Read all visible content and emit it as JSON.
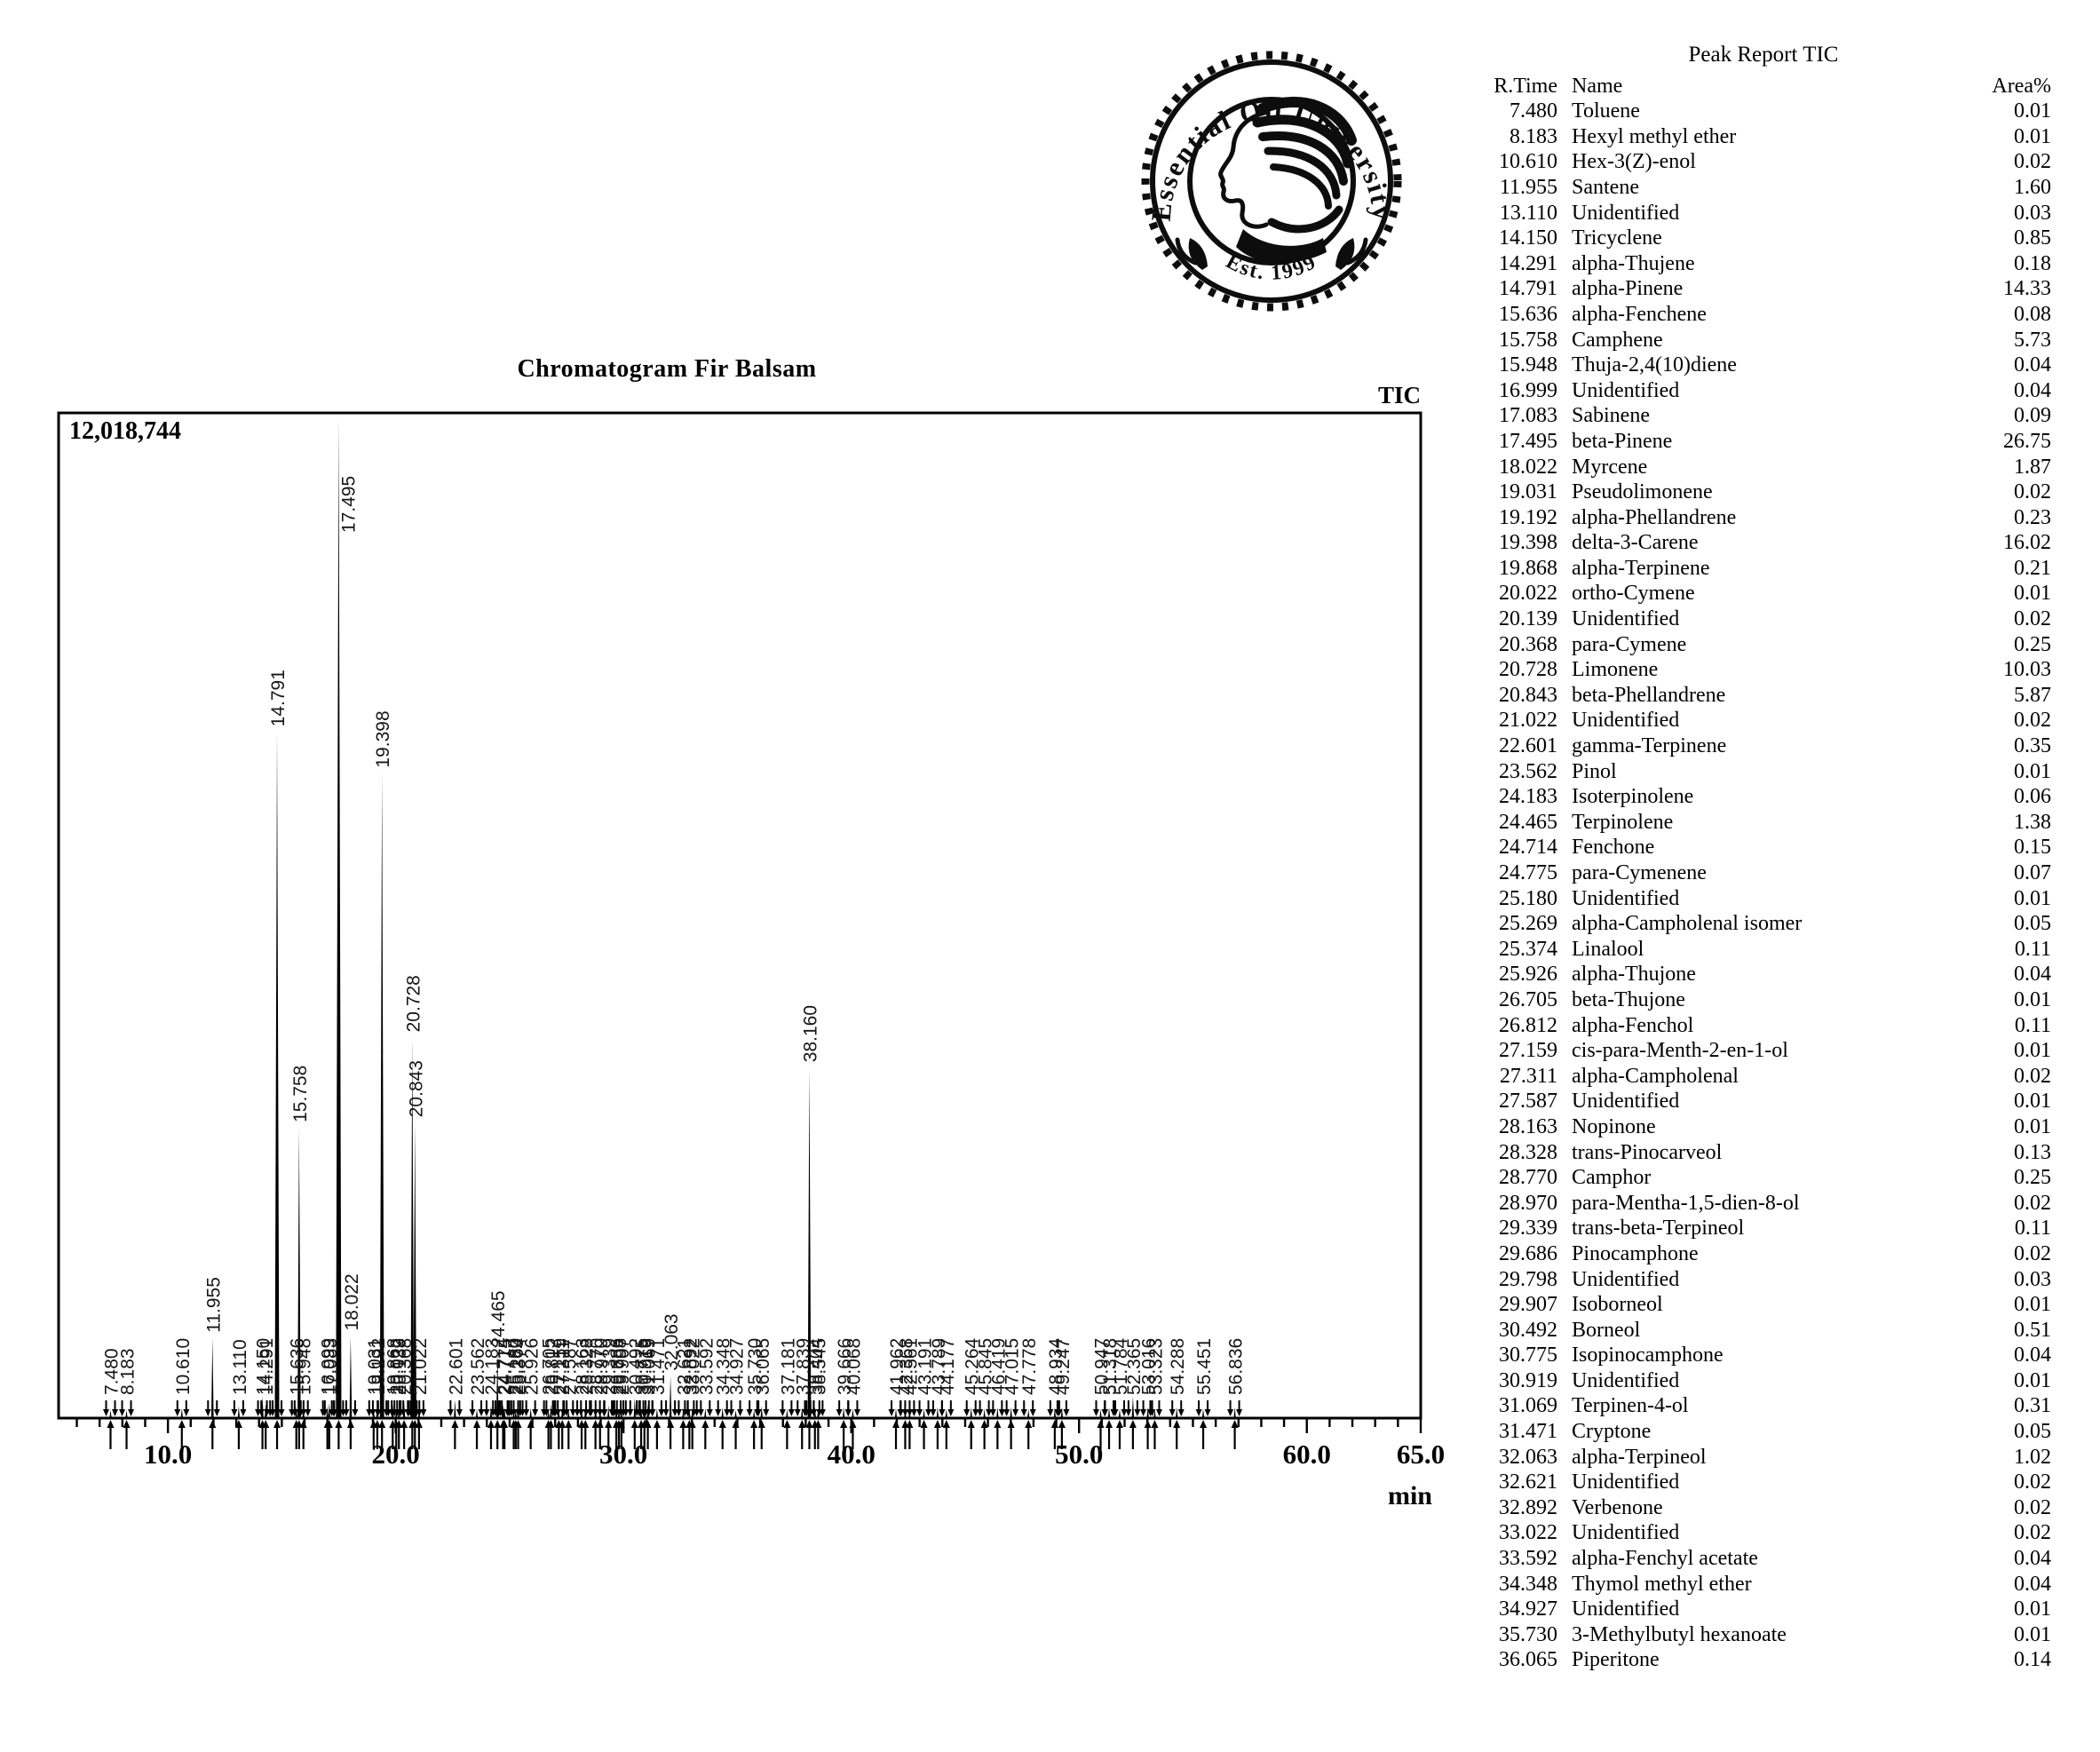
{
  "logo": {
    "arc_text": "Essential Oil University",
    "est_text": "Est. 1999"
  },
  "chart": {
    "title": "Chromatogram Fir Balsam",
    "signal_label": "TIC",
    "max_intensity": "12,018,744",
    "xlabel": "min"
  },
  "chart_data": {
    "type": "line",
    "title": "Chromatogram Fir Balsam",
    "series_label": "TIC",
    "y_full_scale_label": "12,018,744",
    "xlabel": "min",
    "x_range": [
      5.2,
      65.0
    ],
    "x_ticks": [
      10,
      20,
      30,
      40,
      50,
      60,
      65
    ],
    "x_tick_labels": [
      "10.0",
      "20.0",
      "30.0",
      "40.0",
      "50.0",
      "60.0",
      "65.0"
    ],
    "grid": false,
    "peaks": [
      {
        "rt": "7.480",
        "h": 0.008
      },
      {
        "rt": "8.183",
        "h": 0.008
      },
      {
        "rt": "10.610",
        "h": 0.01
      },
      {
        "rt": "11.955",
        "h": 0.08
      },
      {
        "rt": "13.110",
        "h": 0.012
      },
      {
        "rt": "14.150",
        "h": 0.022
      },
      {
        "rt": "14.291",
        "h": 0.014
      },
      {
        "rt": "14.791",
        "h": 0.685
      },
      {
        "rt": "15.636",
        "h": 0.012
      },
      {
        "rt": "15.758",
        "h": 0.29
      },
      {
        "rt": "15.948",
        "h": 0.013
      },
      {
        "rt": "16.999",
        "h": 0.012
      },
      {
        "rt": "17.083",
        "h": 0.015
      },
      {
        "rt": "17.495",
        "h": 1.0
      },
      {
        "rt": "18.022",
        "h": 0.082
      },
      {
        "rt": "19.031",
        "h": 0.01
      },
      {
        "rt": "19.192",
        "h": 0.015
      },
      {
        "rt": "19.398",
        "h": 0.644
      },
      {
        "rt": "19.868",
        "h": 0.014
      },
      {
        "rt": "20.022",
        "h": 0.008
      },
      {
        "rt": "20.139",
        "h": 0.009
      },
      {
        "rt": "20.368",
        "h": 0.016
      },
      {
        "rt": "20.728",
        "h": 0.38
      },
      {
        "rt": "20.843",
        "h": 0.295
      },
      {
        "rt": "21.022",
        "h": 0.009
      },
      {
        "rt": "22.601",
        "h": 0.018
      },
      {
        "rt": "23.562",
        "h": 0.009
      },
      {
        "rt": "24.183",
        "h": 0.012
      },
      {
        "rt": "24.465",
        "h": 0.065
      },
      {
        "rt": "24.714",
        "h": 0.014
      },
      {
        "rt": "24.775",
        "h": 0.011
      },
      {
        "rt": "25.180",
        "h": 0.008
      },
      {
        "rt": "25.269",
        "h": 0.009
      },
      {
        "rt": "25.374",
        "h": 0.014
      },
      {
        "rt": "25.926",
        "h": 0.01
      },
      {
        "rt": "26.705",
        "h": 0.008
      },
      {
        "rt": "26.812",
        "h": 0.014
      },
      {
        "rt": "27.159",
        "h": 0.008
      },
      {
        "rt": "27.311",
        "h": 0.009
      },
      {
        "rt": "27.587",
        "h": 0.008
      },
      {
        "rt": "28.163",
        "h": 0.008
      },
      {
        "rt": "28.328",
        "h": 0.013
      },
      {
        "rt": "28.770",
        "h": 0.015
      },
      {
        "rt": "28.970",
        "h": 0.009
      },
      {
        "rt": "29.339",
        "h": 0.013
      },
      {
        "rt": "29.686",
        "h": 0.009
      },
      {
        "rt": "29.798",
        "h": 0.01
      },
      {
        "rt": "29.907",
        "h": 0.008
      },
      {
        "rt": "30.492",
        "h": 0.02
      },
      {
        "rt": "30.775",
        "h": 0.01
      },
      {
        "rt": "30.919",
        "h": 0.008
      },
      {
        "rt": "31.069",
        "h": 0.014
      },
      {
        "rt": "31.471",
        "h": 0.01
      },
      {
        "rt": "32.063",
        "h": 0.042
      },
      {
        "rt": "32.621",
        "h": 0.009
      },
      {
        "rt": "32.892",
        "h": 0.009
      },
      {
        "rt": "33.022",
        "h": 0.009
      },
      {
        "rt": "33.592",
        "h": 0.01
      },
      {
        "rt": "34.348",
        "h": 0.011
      },
      {
        "rt": "34.927",
        "h": 0.008
      },
      {
        "rt": "35.730",
        "h": 0.008
      },
      {
        "rt": "36.065",
        "h": 0.012
      },
      {
        "rt": "37.181",
        "h": 0.009
      },
      {
        "rt": "37.839",
        "h": 0.011
      },
      {
        "rt": "38.160",
        "h": 0.35
      },
      {
        "rt": "38.404",
        "h": 0.011
      },
      {
        "rt": "38.545",
        "h": 0.009
      },
      {
        "rt": "39.666",
        "h": 0.011
      },
      {
        "rt": "40.068",
        "h": 0.009
      },
      {
        "rt": "41.962",
        "h": 0.01
      },
      {
        "rt": "42.368",
        "h": 0.009
      },
      {
        "rt": "42.561",
        "h": 0.009
      },
      {
        "rt": "43.191",
        "h": 0.009
      },
      {
        "rt": "43.789",
        "h": 0.011
      },
      {
        "rt": "44.177",
        "h": 0.009
      },
      {
        "rt": "45.264",
        "h": 0.011
      },
      {
        "rt": "45.845",
        "h": 0.009
      },
      {
        "rt": "46.419",
        "h": 0.011
      },
      {
        "rt": "47.015",
        "h": 0.011
      },
      {
        "rt": "47.778",
        "h": 0.009
      },
      {
        "rt": "48.934",
        "h": 0.011
      },
      {
        "rt": "49.247",
        "h": 0.011
      },
      {
        "rt": "50.947",
        "h": 0.009
      },
      {
        "rt": "51.318",
        "h": 0.011
      },
      {
        "rt": "51.784",
        "h": 0.009
      },
      {
        "rt": "52.365",
        "h": 0.022
      },
      {
        "rt": "53.016",
        "h": 0.011
      },
      {
        "rt": "53.323",
        "h": 0.009
      },
      {
        "rt": "54.288",
        "h": 0.011
      },
      {
        "rt": "55.451",
        "h": 0.009
      },
      {
        "rt": "56.836",
        "h": 0.011
      }
    ]
  },
  "peak_table": {
    "title": "Peak Report TIC",
    "columns": [
      "R.Time",
      "Name",
      "Area%"
    ],
    "rows": [
      {
        "rtime": "7.480",
        "name": "Toluene",
        "area": "0.01"
      },
      {
        "rtime": "8.183",
        "name": "Hexyl methyl ether",
        "area": "0.01"
      },
      {
        "rtime": "10.610",
        "name": "Hex-3(Z)-enol",
        "area": "0.02"
      },
      {
        "rtime": "11.955",
        "name": "Santene",
        "area": "1.60"
      },
      {
        "rtime": "13.110",
        "name": "Unidentified",
        "area": "0.03"
      },
      {
        "rtime": "14.150",
        "name": "Tricyclene",
        "area": "0.85"
      },
      {
        "rtime": "14.291",
        "name": "alpha-Thujene",
        "area": "0.18"
      },
      {
        "rtime": "14.791",
        "name": "alpha-Pinene",
        "area": "14.33"
      },
      {
        "rtime": "15.636",
        "name": "alpha-Fenchene",
        "area": "0.08"
      },
      {
        "rtime": "15.758",
        "name": "Camphene",
        "area": "5.73"
      },
      {
        "rtime": "15.948",
        "name": "Thuja-2,4(10)diene",
        "area": "0.04"
      },
      {
        "rtime": "16.999",
        "name": "Unidentified",
        "area": "0.04"
      },
      {
        "rtime": "17.083",
        "name": "Sabinene",
        "area": "0.09"
      },
      {
        "rtime": "17.495",
        "name": "beta-Pinene",
        "area": "26.75"
      },
      {
        "rtime": "18.022",
        "name": "Myrcene",
        "area": "1.87"
      },
      {
        "rtime": "19.031",
        "name": "Pseudolimonene",
        "area": "0.02"
      },
      {
        "rtime": "19.192",
        "name": "alpha-Phellandrene",
        "area": "0.23"
      },
      {
        "rtime": "19.398",
        "name": "delta-3-Carene",
        "area": "16.02"
      },
      {
        "rtime": "19.868",
        "name": "alpha-Terpinene",
        "area": "0.21"
      },
      {
        "rtime": "20.022",
        "name": "ortho-Cymene",
        "area": "0.01"
      },
      {
        "rtime": "20.139",
        "name": "Unidentified",
        "area": "0.02"
      },
      {
        "rtime": "20.368",
        "name": "para-Cymene",
        "area": "0.25"
      },
      {
        "rtime": "20.728",
        "name": "Limonene",
        "area": "10.03"
      },
      {
        "rtime": "20.843",
        "name": "beta-Phellandrene",
        "area": "5.87"
      },
      {
        "rtime": "21.022",
        "name": "Unidentified",
        "area": "0.02"
      },
      {
        "rtime": "22.601",
        "name": "gamma-Terpinene",
        "area": "0.35"
      },
      {
        "rtime": "23.562",
        "name": "Pinol",
        "area": "0.01"
      },
      {
        "rtime": "24.183",
        "name": "Isoterpinolene",
        "area": "0.06"
      },
      {
        "rtime": "24.465",
        "name": "Terpinolene",
        "area": "1.38"
      },
      {
        "rtime": "24.714",
        "name": "Fenchone",
        "area": "0.15"
      },
      {
        "rtime": "24.775",
        "name": "para-Cymenene",
        "area": "0.07"
      },
      {
        "rtime": "25.180",
        "name": "Unidentified",
        "area": "0.01"
      },
      {
        "rtime": "25.269",
        "name": "alpha-Campholenal isomer",
        "area": "0.05"
      },
      {
        "rtime": "25.374",
        "name": "Linalool",
        "area": "0.11"
      },
      {
        "rtime": "25.926",
        "name": "alpha-Thujone",
        "area": "0.04"
      },
      {
        "rtime": "26.705",
        "name": "beta-Thujone",
        "area": "0.01"
      },
      {
        "rtime": "26.812",
        "name": "alpha-Fenchol",
        "area": "0.11"
      },
      {
        "rtime": "27.159",
        "name": "cis-para-Menth-2-en-1-ol",
        "area": "0.01"
      },
      {
        "rtime": "27.311",
        "name": "alpha-Campholenal",
        "area": "0.02"
      },
      {
        "rtime": "27.587",
        "name": "Unidentified",
        "area": "0.01"
      },
      {
        "rtime": "28.163",
        "name": "Nopinone",
        "area": "0.01"
      },
      {
        "rtime": "28.328",
        "name": "trans-Pinocarveol",
        "area": "0.13"
      },
      {
        "rtime": "28.770",
        "name": "Camphor",
        "area": "0.25"
      },
      {
        "rtime": "28.970",
        "name": "para-Mentha-1,5-dien-8-ol",
        "area": "0.02"
      },
      {
        "rtime": "29.339",
        "name": "trans-beta-Terpineol",
        "area": "0.11"
      },
      {
        "rtime": "29.686",
        "name": "Pinocamphone",
        "area": "0.02"
      },
      {
        "rtime": "29.798",
        "name": "Unidentified",
        "area": "0.03"
      },
      {
        "rtime": "29.907",
        "name": "Isoborneol",
        "area": "0.01"
      },
      {
        "rtime": "30.492",
        "name": "Borneol",
        "area": "0.51"
      },
      {
        "rtime": "30.775",
        "name": "Isopinocamphone",
        "area": "0.04"
      },
      {
        "rtime": "30.919",
        "name": "Unidentified",
        "area": "0.01"
      },
      {
        "rtime": "31.069",
        "name": "Terpinen-4-ol",
        "area": "0.31"
      },
      {
        "rtime": "31.471",
        "name": "Cryptone",
        "area": "0.05"
      },
      {
        "rtime": "32.063",
        "name": "alpha-Terpineol",
        "area": "1.02"
      },
      {
        "rtime": "32.621",
        "name": "Unidentified",
        "area": "0.02"
      },
      {
        "rtime": "32.892",
        "name": "Verbenone",
        "area": "0.02"
      },
      {
        "rtime": "33.022",
        "name": "Unidentified",
        "area": "0.02"
      },
      {
        "rtime": "33.592",
        "name": "alpha-Fenchyl acetate",
        "area": "0.04"
      },
      {
        "rtime": "34.348",
        "name": "Thymol methyl ether",
        "area": "0.04"
      },
      {
        "rtime": "34.927",
        "name": "Unidentified",
        "area": "0.01"
      },
      {
        "rtime": "35.730",
        "name": "3-Methylbutyl hexanoate",
        "area": "0.01"
      },
      {
        "rtime": "36.065",
        "name": "Piperitone",
        "area": "0.14"
      }
    ]
  }
}
